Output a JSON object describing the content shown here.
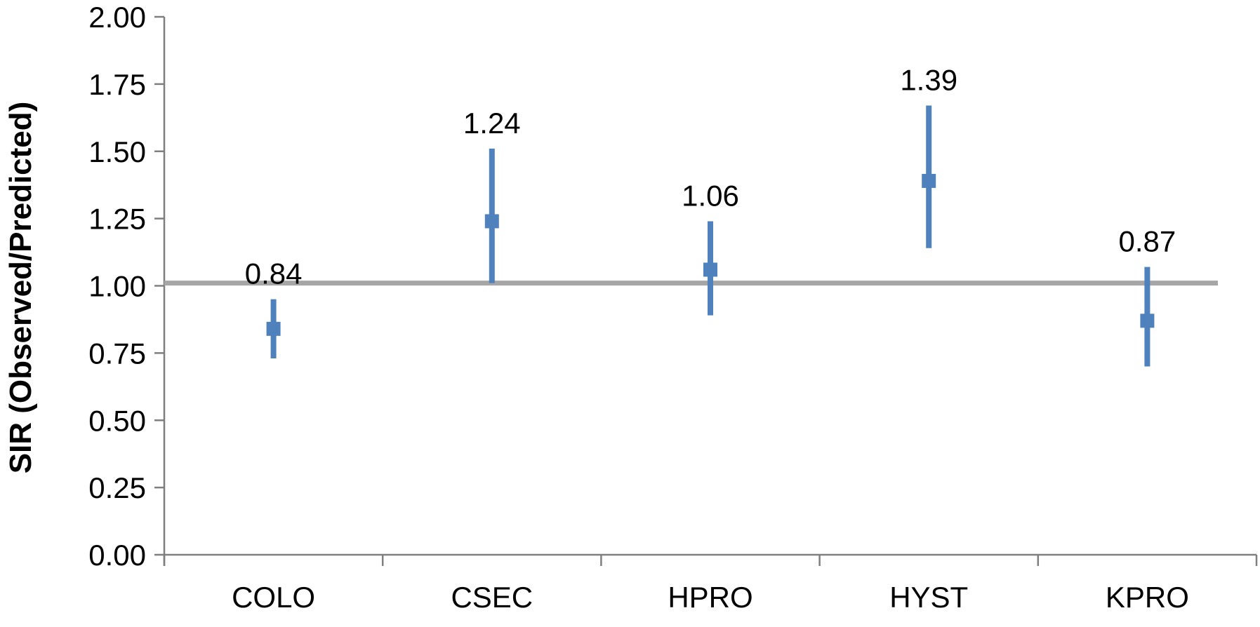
{
  "chart_data": {
    "type": "scatter",
    "title": "",
    "xlabel": "",
    "ylabel": "SIR (Observed/Predicted)",
    "categories": [
      "COLO",
      "CSEC",
      "HPRO",
      "HYST",
      "KPRO"
    ],
    "values": [
      0.84,
      1.24,
      1.06,
      1.39,
      0.87
    ],
    "value_labels": [
      "0.84",
      "1.24",
      "1.06",
      "1.39",
      "0.87"
    ],
    "error_bars": [
      {
        "lower": 0.73,
        "upper": 0.95
      },
      {
        "lower": 1.01,
        "upper": 1.51
      },
      {
        "lower": 0.89,
        "upper": 1.24
      },
      {
        "lower": 1.14,
        "upper": 1.67
      },
      {
        "lower": 0.7,
        "upper": 1.07
      }
    ],
    "reference_line": 1.01,
    "ylim": [
      0,
      2
    ],
    "yticks": [
      0,
      0.25,
      0.5,
      0.75,
      1,
      1.25,
      1.5,
      1.75,
      2
    ],
    "ytick_labels": [
      "0.00",
      "0.25",
      "0.50",
      "0.75",
      "1.00",
      "1.25",
      "1.50",
      "1.75",
      "2.00"
    ],
    "grid": false,
    "legend": "none",
    "colors": {
      "marker": "#4F81BD",
      "reference_line": "#A6A6A6",
      "axis": "#7F7F7F",
      "text": "#000000"
    }
  }
}
